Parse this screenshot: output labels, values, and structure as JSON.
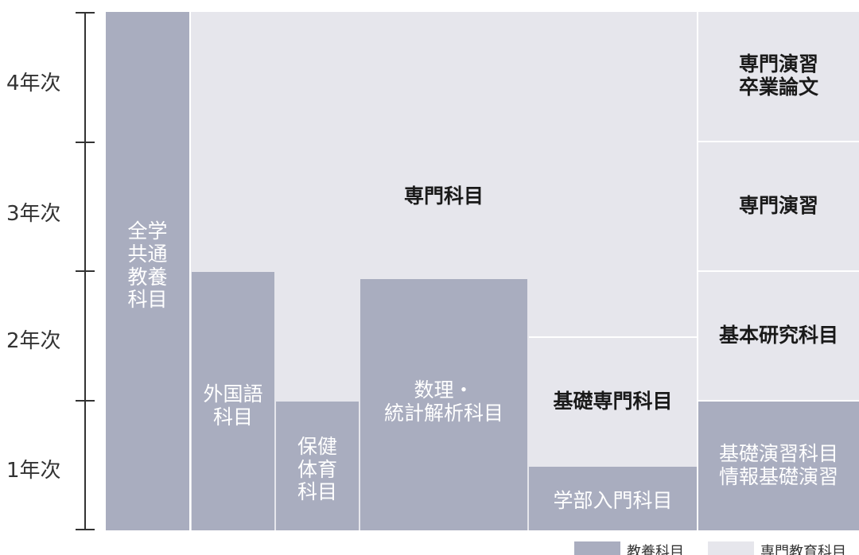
{
  "years": [
    "4年次",
    "3年次",
    "2年次",
    "1年次"
  ],
  "blocks": {
    "general": [
      "全学",
      "共通",
      "教養",
      "科目"
    ],
    "major": [
      "専門科目"
    ],
    "language": [
      "外国語",
      "科目"
    ],
    "health": [
      "保健",
      "体育",
      "科目"
    ],
    "math": [
      "数理・",
      "統計解析科目"
    ],
    "basic_major": [
      "基礎専門科目"
    ],
    "intro": [
      "学部入門科目"
    ],
    "seminar_thesis": [
      "専門演習",
      "卒業論文"
    ],
    "seminar": [
      "専門演習"
    ],
    "basic_research": [
      "基本研究科目"
    ],
    "basic_seminar": [
      "基礎演習科目",
      "情報基礎演習"
    ]
  },
  "legend": [
    "教養科目",
    "専門教育科目"
  ]
}
